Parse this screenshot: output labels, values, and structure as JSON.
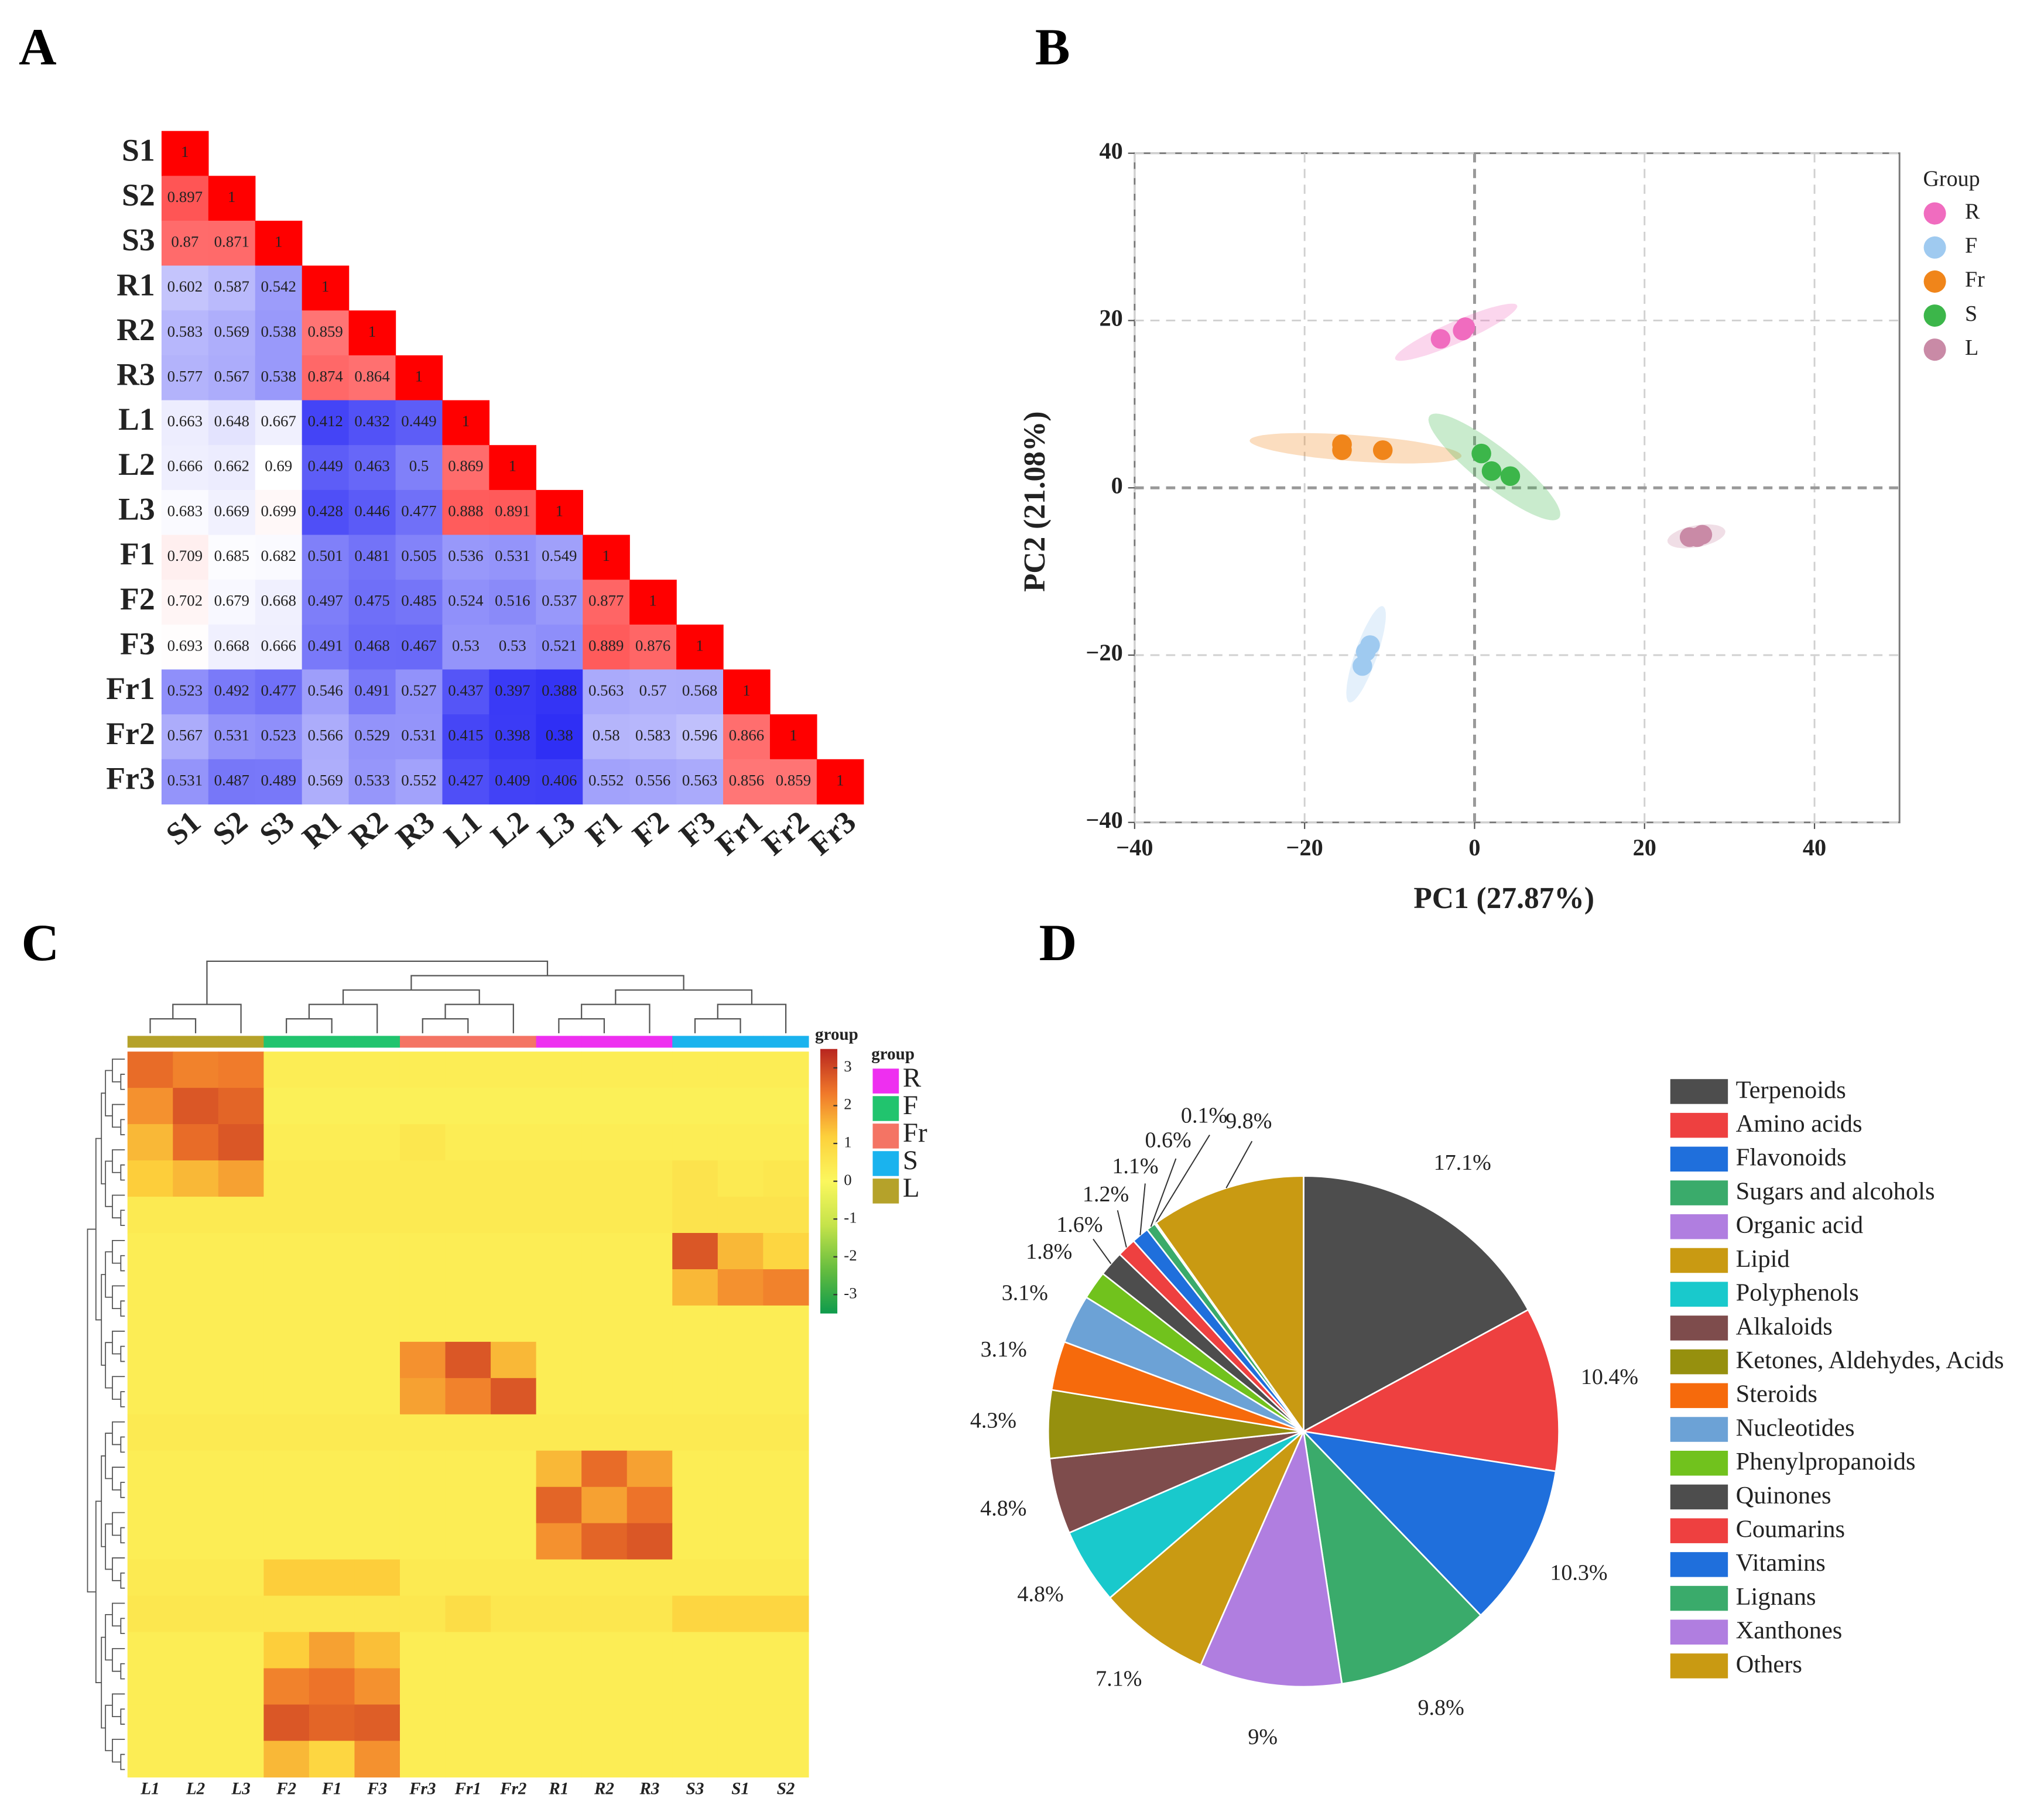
{
  "chart_data": [
    {
      "type": "correlation_heatmap",
      "panel": "A",
      "labels": [
        "S1",
        "S2",
        "S3",
        "R1",
        "R2",
        "R3",
        "L1",
        "L2",
        "L3",
        "F1",
        "F2",
        "F3",
        "Fr1",
        "Fr2",
        "Fr3"
      ],
      "values": [
        [
          1
        ],
        [
          0.897,
          1
        ],
        [
          0.87,
          0.871,
          1
        ],
        [
          0.602,
          0.587,
          0.542,
          1
        ],
        [
          0.583,
          0.569,
          0.538,
          0.859,
          1
        ],
        [
          0.577,
          0.567,
          0.538,
          0.874,
          0.864,
          1
        ],
        [
          0.663,
          0.648,
          0.667,
          0.412,
          0.432,
          0.449,
          1
        ],
        [
          0.666,
          0.662,
          0.69,
          0.449,
          0.463,
          0.5,
          0.869,
          1
        ],
        [
          0.683,
          0.669,
          0.699,
          0.428,
          0.446,
          0.477,
          0.888,
          0.891,
          1
        ],
        [
          0.709,
          0.685,
          0.682,
          0.501,
          0.481,
          0.505,
          0.536,
          0.531,
          0.549,
          1
        ],
        [
          0.702,
          0.679,
          0.668,
          0.497,
          0.475,
          0.485,
          0.524,
          0.516,
          0.537,
          0.877,
          1
        ],
        [
          0.693,
          0.668,
          0.666,
          0.491,
          0.468,
          0.467,
          0.53,
          0.53,
          0.521,
          0.889,
          0.876,
          1
        ],
        [
          0.523,
          0.492,
          0.477,
          0.546,
          0.491,
          0.527,
          0.437,
          0.397,
          0.388,
          0.563,
          0.57,
          0.568,
          1
        ],
        [
          0.567,
          0.531,
          0.523,
          0.566,
          0.529,
          0.531,
          0.415,
          0.398,
          0.38,
          0.58,
          0.583,
          0.596,
          0.866,
          1
        ],
        [
          0.531,
          0.487,
          0.489,
          0.569,
          0.533,
          0.552,
          0.427,
          0.409,
          0.406,
          0.552,
          0.556,
          0.563,
          0.856,
          0.859,
          1
        ]
      ],
      "colors": [
        "#2f2ff5",
        "#ffffff",
        "#ff0000"
      ]
    },
    {
      "type": "scatter",
      "panel": "B",
      "xlabel": "PC1 (27.87%)",
      "ylabel": "PC2 (21.08%)",
      "xlim": [
        -40,
        50
      ],
      "ylim": [
        -40,
        40
      ],
      "xticks": [
        {
          "value": -40,
          "label": "−40"
        },
        {
          "value": -20,
          "label": "−20"
        },
        0,
        20,
        40
      ],
      "yticks": [
        {
          "value": -40,
          "label": "−40"
        },
        {
          "value": -20,
          "label": "−20"
        },
        0,
        20,
        40
      ],
      "grid": true,
      "legend_title": "Group",
      "series": [
        {
          "name": "R",
          "color": "#f06cbf",
          "x": [
            -4,
            -1.4,
            -1.1
          ],
          "y": [
            17.8,
            18.8,
            19.2
          ]
        },
        {
          "name": "F",
          "color": "#9fcaf0",
          "x": [
            -12.3,
            -12.8,
            -13.2
          ],
          "y": [
            -18.8,
            -19.6,
            -21.3
          ]
        },
        {
          "name": "Fr",
          "color": "#f0851a",
          "x": [
            -15.6,
            -15.6,
            -10.8
          ],
          "y": [
            5.2,
            4.5,
            4.5
          ]
        },
        {
          "name": "S",
          "color": "#3cb64a",
          "x": [
            0.8,
            2,
            4.2
          ],
          "y": [
            4.1,
            2,
            1.4
          ]
        },
        {
          "name": "L",
          "color": "#c98aa6",
          "x": [
            25.3,
            26.8,
            26.2
          ],
          "y": [
            -5.9,
            -5.6,
            -5.9
          ]
        }
      ]
    },
    {
      "type": "clustered_heatmap",
      "panel": "C",
      "columns": [
        "L1",
        "L2",
        "L3",
        "F2",
        "F1",
        "F3",
        "Fr3",
        "Fr1",
        "Fr2",
        "R1",
        "R2",
        "R3",
        "S3",
        "S1",
        "S2"
      ],
      "values": [
        [
          2.5,
          2.2,
          2.3,
          0.3,
          0.3,
          0.3,
          0.3,
          0.3,
          0.3,
          0.3,
          0.3,
          0.3,
          0.3,
          0.3,
          0.3
        ],
        [
          2.0,
          2.8,
          2.6,
          0.2,
          0.2,
          0.2,
          0.2,
          0.2,
          0.2,
          0.2,
          0.2,
          0.2,
          0.2,
          0.2,
          0.2
        ],
        [
          1.5,
          2.5,
          2.8,
          0.3,
          0.3,
          0.3,
          0.5,
          0.3,
          0.3,
          0.3,
          0.3,
          0.3,
          0.3,
          0.3,
          0.3
        ],
        [
          1.2,
          1.5,
          1.8,
          0.4,
          0.4,
          0.4,
          0.4,
          0.4,
          0.4,
          0.4,
          0.4,
          0.4,
          0.6,
          0.4,
          0.5
        ],
        [
          0.4,
          0.4,
          0.4,
          0.4,
          0.4,
          0.4,
          0.4,
          0.4,
          0.4,
          0.4,
          0.4,
          0.4,
          0.6,
          0.6,
          0.6
        ],
        [
          0.3,
          0.3,
          0.3,
          0.3,
          0.3,
          0.3,
          0.3,
          0.3,
          0.3,
          0.3,
          0.3,
          0.3,
          2.8,
          1.5,
          1.0
        ],
        [
          0.3,
          0.3,
          0.3,
          0.3,
          0.3,
          0.3,
          0.3,
          0.3,
          0.3,
          0.3,
          0.3,
          0.3,
          1.5,
          2.0,
          2.2
        ],
        [
          0.3,
          0.3,
          0.3,
          0.3,
          0.3,
          0.3,
          0.3,
          0.3,
          0.3,
          0.3,
          0.3,
          0.3,
          0.3,
          0.3,
          0.3
        ],
        [
          0.3,
          0.3,
          0.3,
          0.3,
          0.3,
          0.3,
          2.0,
          2.8,
          1.5,
          0.3,
          0.3,
          0.3,
          0.3,
          0.3,
          0.3
        ],
        [
          0.3,
          0.3,
          0.3,
          0.3,
          0.3,
          0.3,
          1.8,
          2.2,
          2.8,
          0.3,
          0.3,
          0.3,
          0.3,
          0.3,
          0.3
        ],
        [
          0.4,
          0.4,
          0.4,
          0.4,
          0.4,
          0.4,
          0.4,
          0.4,
          0.4,
          0.4,
          0.4,
          0.4,
          0.4,
          0.4,
          0.4
        ],
        [
          0.3,
          0.3,
          0.3,
          0.3,
          0.3,
          0.3,
          0.3,
          0.3,
          0.3,
          1.5,
          2.5,
          1.8,
          0.3,
          0.3,
          0.3
        ],
        [
          0.3,
          0.3,
          0.3,
          0.3,
          0.3,
          0.3,
          0.3,
          0.3,
          0.3,
          2.6,
          1.8,
          2.4,
          0.3,
          0.3,
          0.3
        ],
        [
          0.3,
          0.3,
          0.3,
          0.3,
          0.3,
          0.3,
          0.3,
          0.3,
          0.3,
          2.0,
          2.6,
          2.8,
          0.3,
          0.3,
          0.3
        ],
        [
          0.4,
          0.4,
          0.4,
          1.2,
          1.2,
          1.2,
          0.4,
          0.4,
          0.4,
          0.4,
          0.4,
          0.4,
          0.4,
          0.4,
          0.4
        ],
        [
          0.5,
          0.5,
          0.5,
          0.5,
          0.5,
          0.5,
          0.5,
          0.8,
          0.5,
          0.5,
          0.5,
          0.5,
          1.0,
          1.0,
          1.0
        ],
        [
          0.3,
          0.3,
          0.3,
          1.2,
          1.8,
          1.4,
          0.3,
          0.3,
          0.3,
          0.3,
          0.3,
          0.3,
          0.3,
          0.3,
          0.3
        ],
        [
          0.3,
          0.3,
          0.3,
          2.2,
          2.4,
          2.0,
          0.3,
          0.3,
          0.3,
          0.3,
          0.3,
          0.3,
          0.3,
          0.3,
          0.3
        ],
        [
          0.3,
          0.3,
          0.3,
          2.8,
          2.6,
          2.7,
          0.3,
          0.3,
          0.3,
          0.3,
          0.3,
          0.3,
          0.3,
          0.3,
          0.3
        ],
        [
          0.3,
          0.3,
          0.3,
          1.5,
          1.0,
          2.0,
          0.3,
          0.3,
          0.3,
          0.3,
          0.3,
          0.3,
          0.3,
          0.3,
          0.3
        ]
      ],
      "clim": [
        -3.5,
        3.5
      ],
      "cticks": [
        3,
        2,
        1,
        0,
        -1,
        -2,
        -3
      ],
      "colors": [
        "#0e9b4c",
        "#66bd3f",
        "#c5e34a",
        "#fbf75e",
        "#fdd13c",
        "#f0782a",
        "#b8251f"
      ],
      "colorbar_title": "group",
      "legend_title": "group",
      "groups": [
        {
          "name": "R",
          "color": "#ee2ff0"
        },
        {
          "name": "F",
          "color": "#21c46e"
        },
        {
          "name": "Fr",
          "color": "#f47464"
        },
        {
          "name": "S",
          "color": "#1ab3ee"
        },
        {
          "name": "L",
          "color": "#b5a22a"
        }
      ]
    },
    {
      "type": "pie",
      "panel": "D",
      "categories": [
        "Terpenoids",
        "Amino acids",
        "Flavonoids",
        "Sugars and alcohols",
        "Organic acid",
        "Lipid",
        "Polyphenols",
        "Alkaloids",
        "Ketones, Aldehydes, Acids",
        "Steroids",
        "Nucleotides",
        "Phenylpropanoids",
        "Quinones",
        "Coumarins",
        "Vitamins",
        "Lignans",
        "Xanthones",
        "Others"
      ],
      "values": [
        17.1,
        10.4,
        10.3,
        9.8,
        9,
        7.1,
        4.8,
        4.8,
        4.3,
        3.1,
        3.1,
        1.8,
        1.6,
        1.2,
        1.1,
        0.6,
        0.1,
        9.8
      ],
      "value_labels": [
        "17.1%",
        "10.4%",
        "10.3%",
        "9.8%",
        "9%",
        "7.1%",
        "4.8%",
        "4.8%",
        "4.3%",
        "3.1%",
        "3.1%",
        "1.8%",
        "1.6%",
        "1.2%",
        "1.1%",
        "0.6%",
        "0.1%",
        "9.8%"
      ],
      "colors": [
        "#4d4d4d",
        "#ee4040",
        "#1f6fdc",
        "#3aab6b",
        "#b07ee0",
        "#c99a12",
        "#19c9cc",
        "#7e4c4c",
        "#96900e",
        "#f66a0c",
        "#6ca2d6",
        "#71c21d",
        "#4d4d4d",
        "#ee4040",
        "#1f6fdc",
        "#3aab6b",
        "#b07ee0",
        "#c99a12"
      ]
    }
  ]
}
